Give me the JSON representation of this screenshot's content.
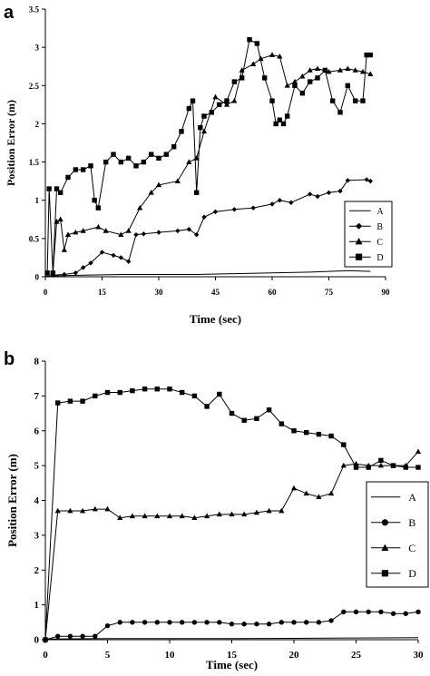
{
  "chart_data": [
    {
      "panel": "a",
      "type": "line",
      "xlabel": "Time (sec)",
      "ylabel": "Position Error (m)",
      "xlim": [
        0,
        90
      ],
      "ylim": [
        0,
        3.5
      ],
      "xticks": [
        0,
        15,
        30,
        45,
        60,
        75,
        90
      ],
      "yticks": [
        0,
        0.5,
        1,
        1.5,
        2,
        2.5,
        3,
        3.5
      ],
      "xtick_labels": [
        "0",
        "15",
        "30",
        "45",
        "60",
        "75",
        "90"
      ],
      "ytick_labels": [
        "0",
        "0.5",
        "1",
        "1.5",
        "2",
        "2.5",
        "3",
        "3.5"
      ],
      "legend_position": "lower-right",
      "series": [
        {
          "name": "A",
          "marker": "none",
          "x": [
            0,
            10,
            20,
            30,
            40,
            50,
            60,
            70,
            80,
            86
          ],
          "y": [
            0.01,
            0.02,
            0.03,
            0.03,
            0.03,
            0.04,
            0.05,
            0.06,
            0.08,
            0.07
          ]
        },
        {
          "name": "B",
          "marker": "diamond",
          "x": [
            2,
            5,
            8,
            10,
            12,
            15,
            18,
            20,
            22,
            24,
            26,
            30,
            35,
            38,
            40,
            42,
            45,
            50,
            55,
            60,
            62,
            65,
            70,
            72,
            75,
            78,
            80,
            85,
            86
          ],
          "y": [
            0.02,
            0.03,
            0.05,
            0.12,
            0.18,
            0.32,
            0.28,
            0.25,
            0.2,
            0.55,
            0.56,
            0.58,
            0.6,
            0.62,
            0.55,
            0.78,
            0.85,
            0.88,
            0.9,
            0.95,
            1.0,
            0.97,
            1.08,
            1.05,
            1.1,
            1.12,
            1.26,
            1.27,
            1.25
          ]
        },
        {
          "name": "C",
          "marker": "triangle",
          "x": [
            2,
            3,
            4,
            5,
            6,
            8,
            10,
            14,
            16,
            20,
            22,
            25,
            28,
            30,
            35,
            38,
            40,
            42,
            45,
            48,
            50,
            52,
            55,
            57,
            60,
            62,
            64,
            66,
            68,
            70,
            72,
            75,
            78,
            80,
            82,
            84,
            86
          ],
          "y": [
            0.05,
            0.72,
            0.75,
            0.35,
            0.55,
            0.58,
            0.6,
            0.65,
            0.6,
            0.55,
            0.6,
            0.9,
            1.1,
            1.2,
            1.25,
            1.5,
            1.55,
            1.9,
            2.35,
            2.25,
            2.3,
            2.7,
            2.78,
            2.85,
            2.9,
            2.88,
            2.5,
            2.55,
            2.62,
            2.7,
            2.72,
            2.68,
            2.7,
            2.72,
            2.7,
            2.68,
            2.65
          ]
        },
        {
          "name": "D",
          "marker": "square",
          "x": [
            0.5,
            1,
            2,
            3,
            4,
            6,
            8,
            10,
            12,
            13,
            14,
            16,
            18,
            20,
            22,
            24,
            26,
            28,
            30,
            32,
            34,
            36,
            38,
            39,
            40,
            41,
            42,
            44,
            46,
            48,
            50,
            52,
            54,
            56,
            58,
            60,
            61,
            62,
            63,
            64,
            66,
            68,
            70,
            72,
            74,
            76,
            78,
            80,
            82,
            84,
            85,
            86
          ],
          "y": [
            0.05,
            1.15,
            0.05,
            1.15,
            1.1,
            1.3,
            1.4,
            1.4,
            1.45,
            1.0,
            0.9,
            1.5,
            1.6,
            1.5,
            1.55,
            1.45,
            1.5,
            1.6,
            1.55,
            1.6,
            1.7,
            1.9,
            2.2,
            2.3,
            1.1,
            1.95,
            2.1,
            2.15,
            2.25,
            2.3,
            2.55,
            2.6,
            3.1,
            3.05,
            2.6,
            2.3,
            2.0,
            2.05,
            2.0,
            2.1,
            2.5,
            2.4,
            2.55,
            2.6,
            2.7,
            2.3,
            2.15,
            2.5,
            2.3,
            2.3,
            2.9,
            2.9
          ]
        }
      ]
    },
    {
      "panel": "b",
      "type": "line",
      "xlabel": "Time (sec)",
      "ylabel": "Position Error (m)",
      "xlim": [
        0,
        30
      ],
      "ylim": [
        0,
        8
      ],
      "xticks": [
        0,
        5,
        10,
        15,
        20,
        25,
        30
      ],
      "yticks": [
        0,
        1,
        2,
        3,
        4,
        5,
        6,
        7,
        8
      ],
      "xtick_labels": [
        "0",
        "5",
        "10",
        "15",
        "20",
        "25",
        "30"
      ],
      "ytick_labels": [
        "0",
        "1",
        "2",
        "3",
        "4",
        "5",
        "6",
        "7",
        "8"
      ],
      "legend_position": "lower-right",
      "series": [
        {
          "name": "A",
          "marker": "none",
          "x": [
            0,
            5,
            10,
            15,
            20,
            25,
            30
          ],
          "y": [
            0.02,
            0.03,
            0.03,
            0.03,
            0.04,
            0.05,
            0.06
          ]
        },
        {
          "name": "B",
          "marker": "diamond",
          "x": [
            0,
            1,
            2,
            3,
            4,
            5,
            6,
            7,
            8,
            9,
            10,
            11,
            12,
            13,
            14,
            15,
            16,
            17,
            18,
            19,
            20,
            21,
            22,
            23,
            24,
            25,
            26,
            27,
            28,
            29,
            30
          ],
          "y": [
            0,
            0.1,
            0.1,
            0.1,
            0.1,
            0.4,
            0.5,
            0.5,
            0.5,
            0.5,
            0.5,
            0.5,
            0.5,
            0.5,
            0.5,
            0.45,
            0.45,
            0.45,
            0.45,
            0.5,
            0.5,
            0.5,
            0.5,
            0.55,
            0.8,
            0.8,
            0.8,
            0.8,
            0.75,
            0.75,
            0.8
          ]
        },
        {
          "name": "C",
          "marker": "triangle",
          "x": [
            0,
            1,
            2,
            3,
            4,
            5,
            6,
            7,
            8,
            9,
            10,
            11,
            12,
            13,
            14,
            15,
            16,
            17,
            18,
            19,
            20,
            21,
            22,
            23,
            24,
            25,
            26,
            27,
            28,
            29,
            30
          ],
          "y": [
            0,
            3.7,
            3.7,
            3.7,
            3.75,
            3.75,
            3.5,
            3.55,
            3.55,
            3.55,
            3.55,
            3.55,
            3.5,
            3.55,
            3.6,
            3.6,
            3.6,
            3.65,
            3.7,
            3.7,
            4.35,
            4.2,
            4.1,
            4.2,
            5.0,
            5.05,
            5.0,
            5.0,
            5.0,
            5.0,
            5.4
          ]
        },
        {
          "name": "D",
          "marker": "square",
          "x": [
            0,
            1,
            2,
            3,
            4,
            5,
            6,
            7,
            8,
            9,
            10,
            11,
            12,
            13,
            14,
            15,
            16,
            17,
            18,
            19,
            20,
            21,
            22,
            23,
            24,
            25,
            26,
            27,
            28,
            29,
            30
          ],
          "y": [
            0,
            6.8,
            6.85,
            6.85,
            7.0,
            7.1,
            7.1,
            7.15,
            7.2,
            7.2,
            7.2,
            7.1,
            7.0,
            6.7,
            7.05,
            6.5,
            6.3,
            6.35,
            6.6,
            6.2,
            6.0,
            5.95,
            5.9,
            5.85,
            5.6,
            4.95,
            4.95,
            5.15,
            5.0,
            4.95,
            4.95
          ]
        }
      ]
    }
  ]
}
